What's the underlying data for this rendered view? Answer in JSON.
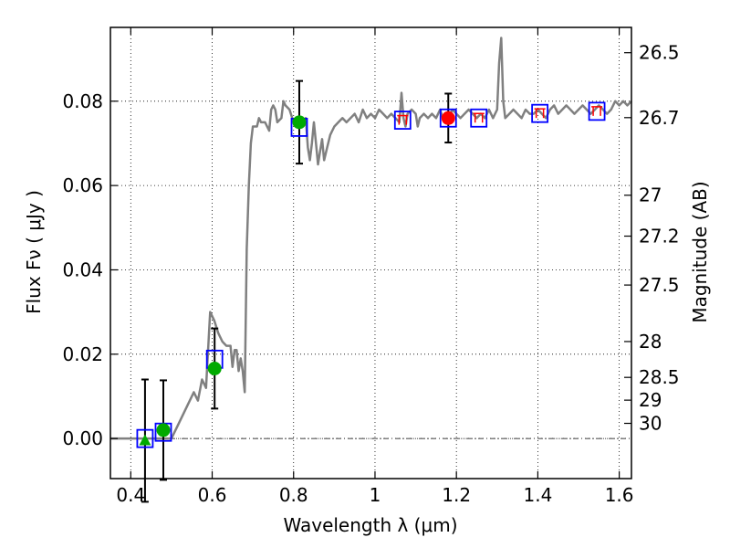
{
  "chart_data": {
    "type": "scatter",
    "xlabel": "Wavelength  λ (μm)",
    "ylabel": "Flux  Fν  ( μJy )",
    "y2label": "Magnitude (AB)",
    "xlim": [
      0.35,
      1.63
    ],
    "ylim": [
      -0.0095,
      0.0975
    ],
    "xticks": [
      0.4,
      0.6,
      0.8,
      1.0,
      1.2,
      1.4,
      1.6
    ],
    "xtick_labels": [
      "0.4",
      "0.6",
      "0.8",
      "1",
      "1.2",
      "1.4",
      "1.6"
    ],
    "yticks": [
      0.0,
      0.02,
      0.04,
      0.06,
      0.08
    ],
    "ytick_labels": [
      "0.00",
      "0.02",
      "0.04",
      "0.06",
      "0.08"
    ],
    "mag_ticks": [
      {
        "label": "26.5",
        "flux": 0.0915
      },
      {
        "label": "26.7",
        "flux": 0.0761
      },
      {
        "label": "27",
        "flux": 0.0577
      },
      {
        "label": "27.2",
        "flux": 0.048
      },
      {
        "label": "27.5",
        "flux": 0.0364
      },
      {
        "label": "28",
        "flux": 0.023
      },
      {
        "label": "28.5",
        "flux": 0.0145
      },
      {
        "label": "29",
        "flux": 0.0091
      },
      {
        "label": "30",
        "flux": 0.0036
      }
    ],
    "grid": true,
    "zero_line": 0.0,
    "model_sed": {
      "name": "model spectrum",
      "color": "#808080",
      "points": [
        [
          0.35,
          0.0
        ],
        [
          0.44,
          0.0
        ],
        [
          0.5,
          0.0
        ],
        [
          0.515,
          0.003
        ],
        [
          0.53,
          0.006
        ],
        [
          0.545,
          0.009
        ],
        [
          0.555,
          0.011
        ],
        [
          0.565,
          0.009
        ],
        [
          0.575,
          0.014
        ],
        [
          0.585,
          0.012
        ],
        [
          0.595,
          0.03
        ],
        [
          0.605,
          0.028
        ],
        [
          0.615,
          0.025
        ],
        [
          0.625,
          0.023
        ],
        [
          0.635,
          0.022
        ],
        [
          0.645,
          0.022
        ],
        [
          0.65,
          0.017
        ],
        [
          0.655,
          0.021
        ],
        [
          0.66,
          0.021
        ],
        [
          0.665,
          0.016
        ],
        [
          0.67,
          0.019
        ],
        [
          0.675,
          0.016
        ],
        [
          0.68,
          0.011
        ],
        [
          0.685,
          0.045
        ],
        [
          0.69,
          0.06
        ],
        [
          0.695,
          0.07
        ],
        [
          0.7,
          0.074
        ],
        [
          0.71,
          0.074
        ],
        [
          0.715,
          0.076
        ],
        [
          0.72,
          0.075
        ],
        [
          0.73,
          0.075
        ],
        [
          0.74,
          0.073
        ],
        [
          0.745,
          0.078
        ],
        [
          0.75,
          0.079
        ],
        [
          0.755,
          0.078
        ],
        [
          0.76,
          0.075
        ],
        [
          0.77,
          0.076
        ],
        [
          0.775,
          0.08
        ],
        [
          0.78,
          0.079
        ],
        [
          0.79,
          0.078
        ],
        [
          0.8,
          0.075
        ],
        [
          0.81,
          0.076
        ],
        [
          0.82,
          0.075
        ],
        [
          0.83,
          0.076
        ],
        [
          0.835,
          0.069
        ],
        [
          0.84,
          0.066
        ],
        [
          0.845,
          0.07
        ],
        [
          0.85,
          0.075
        ],
        [
          0.855,
          0.07
        ],
        [
          0.86,
          0.065
        ],
        [
          0.865,
          0.068
        ],
        [
          0.87,
          0.071
        ],
        [
          0.875,
          0.066
        ],
        [
          0.88,
          0.068
        ],
        [
          0.89,
          0.072
        ],
        [
          0.9,
          0.074
        ],
        [
          0.91,
          0.075
        ],
        [
          0.92,
          0.076
        ],
        [
          0.93,
          0.075
        ],
        [
          0.94,
          0.076
        ],
        [
          0.95,
          0.077
        ],
        [
          0.96,
          0.075
        ],
        [
          0.97,
          0.078
        ],
        [
          0.98,
          0.076
        ],
        [
          0.99,
          0.077
        ],
        [
          1.0,
          0.076
        ],
        [
          1.01,
          0.078
        ],
        [
          1.02,
          0.077
        ],
        [
          1.03,
          0.076
        ],
        [
          1.04,
          0.077
        ],
        [
          1.05,
          0.076
        ],
        [
          1.06,
          0.075
        ],
        [
          1.065,
          0.082
        ],
        [
          1.07,
          0.076
        ],
        [
          1.075,
          0.074
        ],
        [
          1.08,
          0.077
        ],
        [
          1.09,
          0.078
        ],
        [
          1.1,
          0.077
        ],
        [
          1.105,
          0.074
        ],
        [
          1.11,
          0.076
        ],
        [
          1.12,
          0.077
        ],
        [
          1.13,
          0.076
        ],
        [
          1.14,
          0.077
        ],
        [
          1.15,
          0.076
        ],
        [
          1.16,
          0.078
        ],
        [
          1.17,
          0.075
        ],
        [
          1.18,
          0.076
        ],
        [
          1.19,
          0.078
        ],
        [
          1.2,
          0.077
        ],
        [
          1.21,
          0.076
        ],
        [
          1.22,
          0.077
        ],
        [
          1.23,
          0.078
        ],
        [
          1.24,
          0.077
        ],
        [
          1.25,
          0.076
        ],
        [
          1.26,
          0.077
        ],
        [
          1.27,
          0.076
        ],
        [
          1.28,
          0.078
        ],
        [
          1.29,
          0.076
        ],
        [
          1.3,
          0.078
        ],
        [
          1.305,
          0.089
        ],
        [
          1.31,
          0.095
        ],
        [
          1.315,
          0.08
        ],
        [
          1.32,
          0.076
        ],
        [
          1.33,
          0.077
        ],
        [
          1.34,
          0.078
        ],
        [
          1.35,
          0.077
        ],
        [
          1.36,
          0.076
        ],
        [
          1.37,
          0.078
        ],
        [
          1.38,
          0.077
        ],
        [
          1.39,
          0.077
        ],
        [
          1.4,
          0.078
        ],
        [
          1.41,
          0.077
        ],
        [
          1.42,
          0.076
        ],
        [
          1.43,
          0.078
        ],
        [
          1.44,
          0.079
        ],
        [
          1.45,
          0.077
        ],
        [
          1.46,
          0.078
        ],
        [
          1.47,
          0.079
        ],
        [
          1.48,
          0.078
        ],
        [
          1.49,
          0.077
        ],
        [
          1.5,
          0.078
        ],
        [
          1.51,
          0.079
        ],
        [
          1.52,
          0.078
        ],
        [
          1.53,
          0.077
        ],
        [
          1.54,
          0.078
        ],
        [
          1.55,
          0.079
        ],
        [
          1.56,
          0.078
        ],
        [
          1.57,
          0.077
        ],
        [
          1.58,
          0.078
        ],
        [
          1.59,
          0.08
        ],
        [
          1.6,
          0.079
        ],
        [
          1.61,
          0.08
        ],
        [
          1.62,
          0.079
        ],
        [
          1.63,
          0.08
        ]
      ]
    },
    "model_bands": [
      {
        "x": 0.435,
        "y": 0.0,
        "color": "#0000ff"
      },
      {
        "x": 0.48,
        "y": 0.0015,
        "color": "#0000ff"
      },
      {
        "x": 0.606,
        "y": 0.0188,
        "color": "#0000ff"
      },
      {
        "x": 0.814,
        "y": 0.0738,
        "color": "#0000ff"
      },
      {
        "x": 1.068,
        "y": 0.0755,
        "color": "#0000ff"
      },
      {
        "x": 1.18,
        "y": 0.076,
        "color": "#0000ff"
      },
      {
        "x": 1.255,
        "y": 0.076,
        "color": "#0000ff"
      },
      {
        "x": 1.405,
        "y": 0.0771,
        "color": "#0000ff"
      },
      {
        "x": 1.545,
        "y": 0.0776,
        "color": "#0000ff"
      }
    ],
    "upper_limits": [
      {
        "x": 1.068,
        "y": 0.0755,
        "color": "#ff0000"
      },
      {
        "x": 1.255,
        "y": 0.076,
        "color": "#ff0000"
      },
      {
        "x": 1.405,
        "y": 0.0771,
        "color": "#ff0000"
      },
      {
        "x": 1.545,
        "y": 0.0776,
        "color": "#ff0000"
      }
    ],
    "observed": [
      {
        "x": 0.435,
        "y": -0.0005,
        "err": 0.0145,
        "marker": "triangle",
        "color": "#00aa00"
      },
      {
        "x": 0.48,
        "y": 0.002,
        "err": 0.0118,
        "marker": "circle",
        "color": "#00aa00"
      },
      {
        "x": 0.606,
        "y": 0.0166,
        "err": 0.0095,
        "marker": "circle",
        "color": "#00aa00"
      },
      {
        "x": 0.814,
        "y": 0.075,
        "err": 0.0098,
        "marker": "circle",
        "color": "#00aa00"
      },
      {
        "x": 1.18,
        "y": 0.076,
        "err": 0.0058,
        "marker": "circle",
        "color": "#ff0000"
      }
    ]
  }
}
